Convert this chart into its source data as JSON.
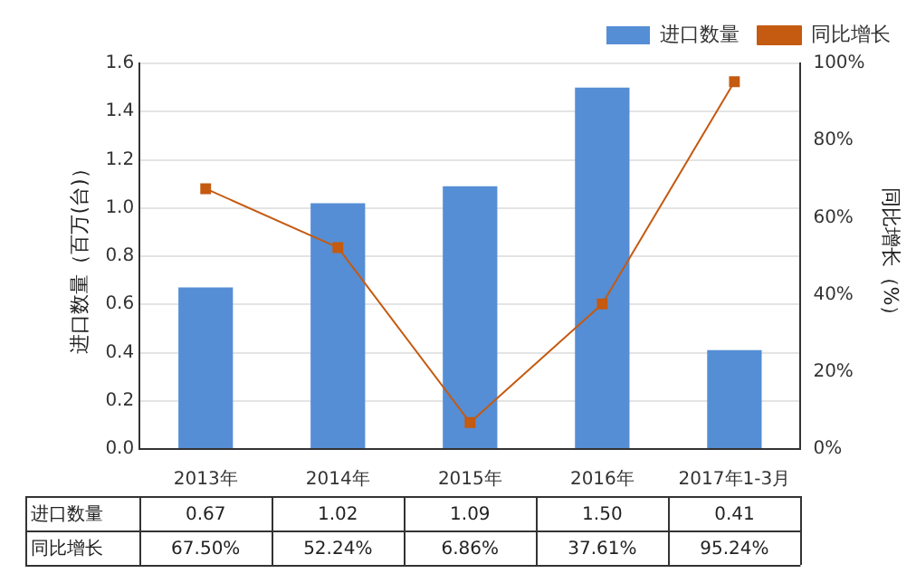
{
  "chart_data": {
    "type": "bar",
    "categories": [
      "2013年",
      "2014年",
      "2015年",
      "2016年",
      "2017年1-3月"
    ],
    "ylabel": "进口数量（百万(台)）",
    "y2label": "同比增长（%）",
    "series": [
      {
        "name": "进口数量",
        "color": "#558ed5",
        "values": [
          0.67,
          1.02,
          1.09,
          1.5,
          0.41
        ],
        "value_labels": [
          "0.67",
          "1.02",
          "1.09",
          "1.50",
          "0.41"
        ]
      },
      {
        "name": "同比增长",
        "type": "line",
        "axis": "y2",
        "color": "#c55a11",
        "values": [
          67.5,
          52.24,
          6.86,
          37.61,
          95.24
        ],
        "value_labels": [
          "67.50%",
          "52.24%",
          "6.86%",
          "37.61%",
          "95.24%"
        ]
      }
    ],
    "ylim": [
      0,
      1.6
    ],
    "yticks": [
      {
        "value": 0,
        "label": "0.0"
      },
      {
        "value": 0.2,
        "label": "0.2"
      },
      {
        "value": 0.4,
        "label": "0.4"
      },
      {
        "value": 0.6,
        "label": "0.6"
      },
      {
        "value": 0.8,
        "label": "0.8"
      },
      {
        "value": 1,
        "label": "1.0"
      },
      {
        "value": 1.2,
        "label": "1.2"
      },
      {
        "value": 1.4,
        "label": "1.4"
      },
      {
        "value": 1.6,
        "label": "1.6"
      }
    ],
    "y2lim": [
      0,
      100
    ],
    "y2ticks": [
      {
        "value": 0,
        "label": "0%"
      },
      {
        "value": 20,
        "label": "20%"
      },
      {
        "value": 40,
        "label": "40%"
      },
      {
        "value": 60,
        "label": "60%"
      },
      {
        "value": 80,
        "label": "80%"
      },
      {
        "value": 100,
        "label": "100%"
      }
    ],
    "grid": "y",
    "legend": "top right",
    "marker": "square",
    "line_style": "solid"
  }
}
